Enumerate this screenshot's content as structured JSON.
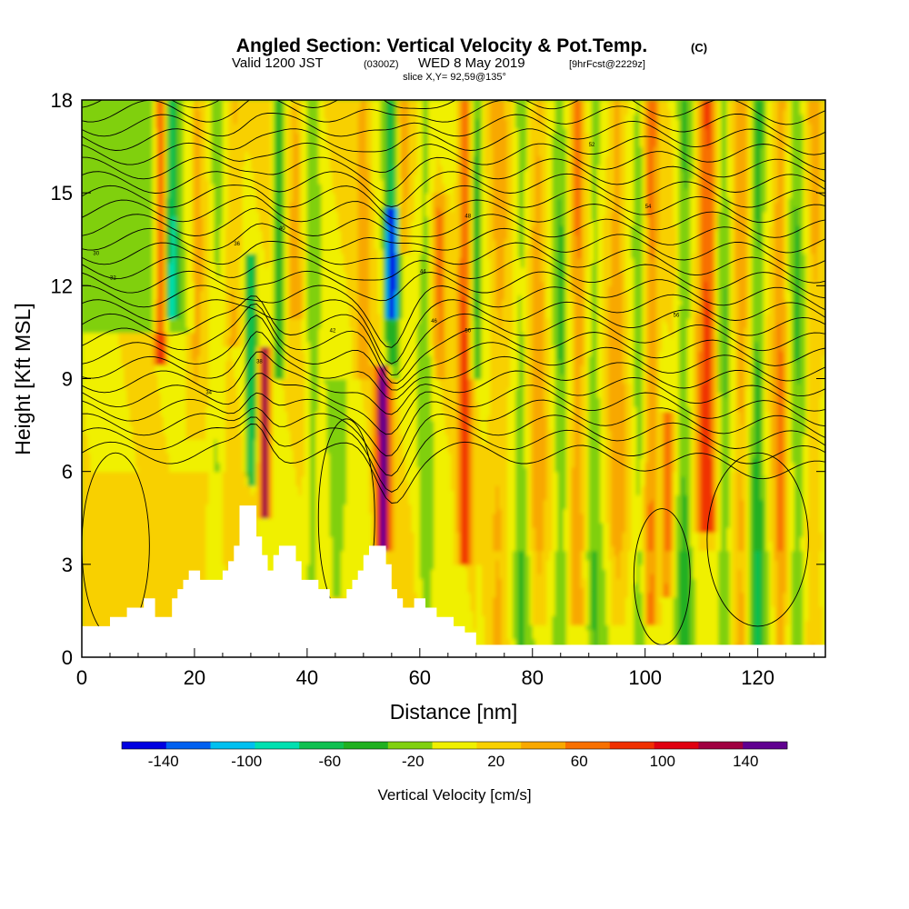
{
  "chart_data": {
    "type": "heatmap",
    "title": "Angled Section: Vertical Velocity & Pot.Temp.",
    "title_unit": "(C)",
    "subtitle": {
      "valid": "Valid 1200 JST",
      "utc": "(0300Z)",
      "date": "WED 8 May 2019",
      "fcst": "[9hrFcst@2229z]"
    },
    "slice": "slice X,Y= 92,59@135°",
    "xlabel": "Distance [nm]",
    "ylabel": "Height [Kft MSL]",
    "xlim": [
      0,
      132
    ],
    "ylim": [
      0,
      18
    ],
    "xticks": [
      0,
      20,
      40,
      60,
      80,
      100,
      120
    ],
    "yticks": [
      0,
      3,
      6,
      9,
      12,
      15,
      18
    ],
    "colorbar": {
      "label": "Vertical Velocity [cm/s]",
      "ticks": [
        "-140",
        "-100",
        "-60",
        "-20",
        "20",
        "60",
        "100",
        "140"
      ],
      "bounds": [
        -160,
        160
      ],
      "colors": [
        "#0000e0",
        "#0060f0",
        "#00c0f0",
        "#00e0b0",
        "#10c050",
        "#20b020",
        "#80d010",
        "#f0f000",
        "#f8d000",
        "#f8a800",
        "#f87000",
        "#f03000",
        "#e00010",
        "#a00040",
        "#600090"
      ]
    },
    "terrain_profile_kft": [
      [
        0,
        1
      ],
      [
        5,
        1
      ],
      [
        5,
        1.3
      ],
      [
        8,
        1.3
      ],
      [
        8,
        1.6
      ],
      [
        11,
        1.6
      ],
      [
        11,
        1.9
      ],
      [
        13,
        1.9
      ],
      [
        13,
        1.3
      ],
      [
        16,
        1.3
      ],
      [
        16,
        1.9
      ],
      [
        17,
        1.9
      ],
      [
        17,
        2.2
      ],
      [
        18,
        2.2
      ],
      [
        18,
        2.5
      ],
      [
        19,
        2.5
      ],
      [
        19,
        2.8
      ],
      [
        21,
        2.8
      ],
      [
        21,
        2.5
      ],
      [
        25,
        2.5
      ],
      [
        25,
        2.8
      ],
      [
        26,
        2.8
      ],
      [
        26,
        3.1
      ],
      [
        27,
        3.1
      ],
      [
        27,
        3.6
      ],
      [
        28,
        3.6
      ],
      [
        28,
        4.9
      ],
      [
        31,
        4.9
      ],
      [
        31,
        3.9
      ],
      [
        32,
        3.9
      ],
      [
        32,
        3.3
      ],
      [
        33,
        3.3
      ],
      [
        33,
        2.8
      ],
      [
        34,
        2.8
      ],
      [
        34,
        3.3
      ],
      [
        35,
        3.3
      ],
      [
        35,
        3.6
      ],
      [
        38,
        3.6
      ],
      [
        38,
        3.1
      ],
      [
        39,
        3.1
      ],
      [
        39,
        2.5
      ],
      [
        42,
        2.5
      ],
      [
        42,
        2.2
      ],
      [
        44,
        2.2
      ],
      [
        44,
        1.9
      ],
      [
        47,
        1.9
      ],
      [
        47,
        2.2
      ],
      [
        48,
        2.2
      ],
      [
        48,
        2.5
      ],
      [
        49,
        2.5
      ],
      [
        49,
        2.8
      ],
      [
        50,
        2.8
      ],
      [
        50,
        3.3
      ],
      [
        51,
        3.3
      ],
      [
        51,
        3.6
      ],
      [
        54,
        3.6
      ],
      [
        54,
        3.0
      ],
      [
        55,
        3.0
      ],
      [
        55,
        2.2
      ],
      [
        56,
        2.2
      ],
      [
        56,
        1.9
      ],
      [
        57,
        1.9
      ],
      [
        57,
        1.6
      ],
      [
        59,
        1.6
      ],
      [
        59,
        1.9
      ],
      [
        61,
        1.9
      ],
      [
        61,
        1.6
      ],
      [
        63,
        1.6
      ],
      [
        63,
        1.3
      ],
      [
        66,
        1.3
      ],
      [
        66,
        1.0
      ],
      [
        68,
        1.0
      ],
      [
        68,
        0.8
      ],
      [
        70,
        0.8
      ],
      [
        70,
        0.4
      ],
      [
        132,
        0.4
      ]
    ],
    "isentrope_labels": [
      "30",
      "32",
      "34",
      "36",
      "38",
      "40",
      "42",
      "44",
      "46",
      "48",
      "50",
      "52",
      "54",
      "56"
    ],
    "grid": false
  }
}
